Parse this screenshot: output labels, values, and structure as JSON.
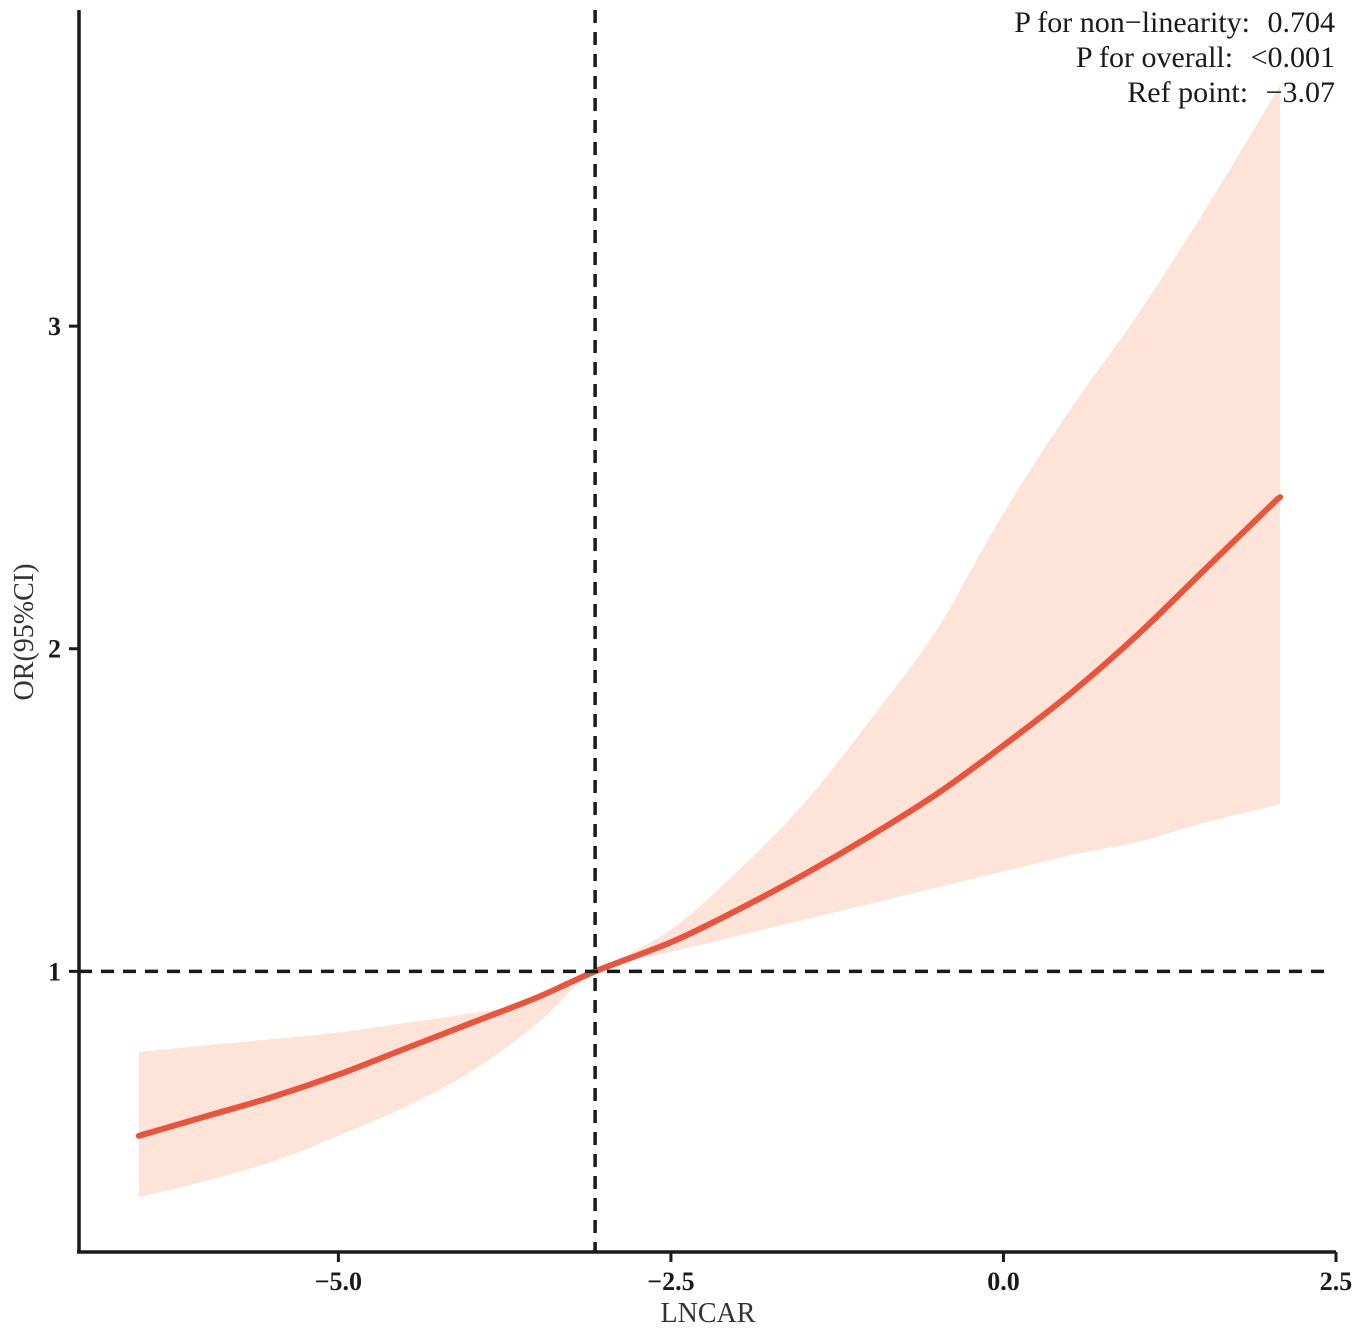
{
  "chart_data": {
    "type": "line",
    "xlabel": "LNCAR",
    "ylabel": "OR(95%CI)",
    "xlim": [
      -6.95,
      2.5
    ],
    "ylim": [
      0.13,
      3.98
    ],
    "x_ticks": [
      {
        "value": -5.0,
        "label": "−5.0"
      },
      {
        "value": -2.5,
        "label": "−2.5"
      },
      {
        "value": 0.0,
        "label": "0.0"
      },
      {
        "value": 2.5,
        "label": "2.5"
      }
    ],
    "y_ticks": [
      {
        "value": 1,
        "label": "1"
      },
      {
        "value": 2,
        "label": "2"
      },
      {
        "value": 3,
        "label": "3"
      }
    ],
    "ref_lines": {
      "x": -3.07,
      "y": 1
    },
    "annotations": [
      {
        "label": "P for non−linearity:",
        "value": "0.704"
      },
      {
        "label": "P for overall:",
        "value": "<0.001"
      },
      {
        "label": "Ref point:",
        "value": "−3.07"
      }
    ],
    "colors": {
      "line": "#e8553f",
      "band": "#fde3d8",
      "axis": "#1a1a1a",
      "ref": "#1a1a1a"
    },
    "series": [
      {
        "x": [
          -6.5,
          -6.0,
          -5.5,
          -5.0,
          -4.5,
          -4.0,
          -3.5,
          -3.07,
          -2.5,
          -2.0,
          -1.5,
          -1.0,
          -0.5,
          0.0,
          0.5,
          1.0,
          1.5,
          2.0,
          2.08
        ],
        "y": [
          0.49,
          0.55,
          0.61,
          0.68,
          0.76,
          0.84,
          0.92,
          1.0,
          1.09,
          1.19,
          1.3,
          1.42,
          1.55,
          1.7,
          1.86,
          2.04,
          2.24,
          2.44,
          2.47
        ],
        "lower": [
          0.3,
          0.35,
          0.41,
          0.49,
          0.58,
          0.69,
          0.84,
          1.0,
          1.06,
          1.11,
          1.16,
          1.21,
          1.26,
          1.31,
          1.36,
          1.4,
          1.46,
          1.51,
          1.52
        ],
        "upper": [
          0.75,
          0.77,
          0.79,
          0.81,
          0.84,
          0.87,
          0.91,
          1.0,
          1.13,
          1.31,
          1.52,
          1.78,
          2.06,
          2.42,
          2.74,
          3.03,
          3.35,
          3.69,
          3.75
        ]
      }
    ]
  }
}
